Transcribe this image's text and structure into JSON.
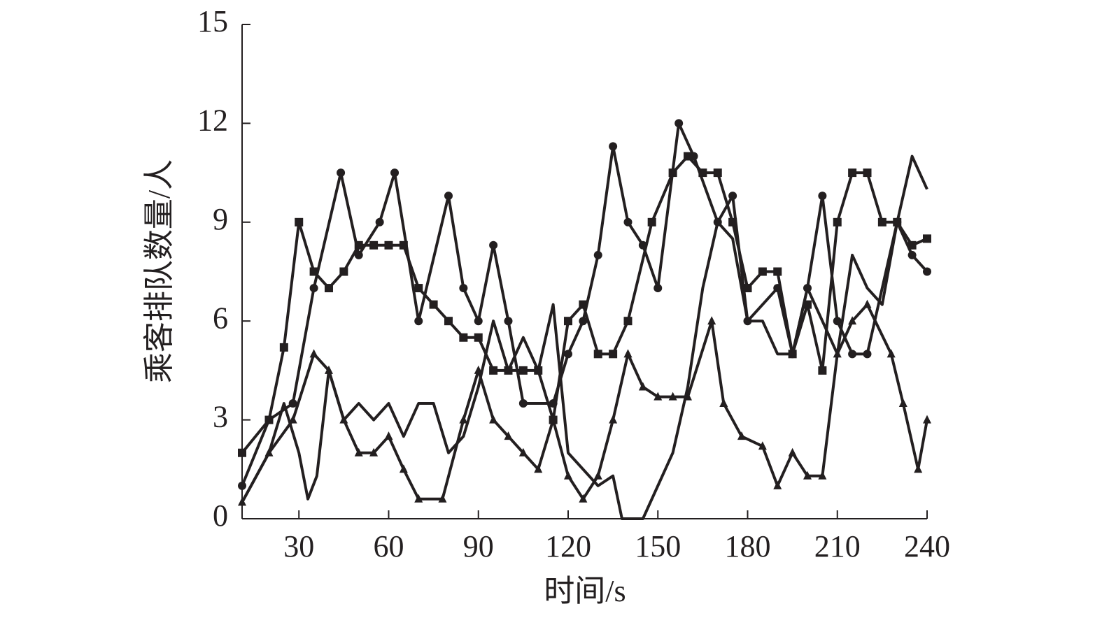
{
  "chart_data": {
    "type": "line",
    "x_label": "时间/s",
    "y_label": "乘客排队数量/人",
    "xlim": [
      11,
      240
    ],
    "xticks": [
      30,
      60,
      90,
      120,
      150,
      180,
      210,
      240
    ],
    "ylim": [
      0,
      15
    ],
    "yticks": [
      0,
      3,
      6,
      9,
      12,
      15
    ],
    "series": [
      {
        "color": "#231f20",
        "marker": "square",
        "x": [
          11,
          20,
          25,
          30,
          35,
          40,
          45,
          50,
          55,
          60,
          65,
          70,
          75,
          80,
          85,
          90,
          95,
          100,
          105,
          110,
          115,
          120,
          125,
          130,
          135,
          140,
          148,
          155,
          160,
          165,
          170,
          175,
          180,
          185,
          190,
          195,
          200,
          205,
          210,
          215,
          220,
          225,
          230,
          235,
          240
        ],
        "values": [
          2,
          3,
          5.2,
          9,
          7.5,
          7,
          7.5,
          8.3,
          8.3,
          8.3,
          8.3,
          7,
          6.5,
          6,
          5.5,
          5.5,
          4.5,
          4.5,
          4.5,
          4.5,
          3,
          6,
          6.5,
          5,
          5,
          6,
          9,
          10.5,
          11,
          10.5,
          10.5,
          9,
          7,
          7.5,
          7.5,
          5,
          6.5,
          4.5,
          9,
          10.5,
          10.5,
          9,
          9,
          8.3,
          8.5
        ]
      },
      {
        "color": "#231f20",
        "marker": "circle",
        "x": [
          11,
          20,
          28,
          35,
          44,
          50,
          57,
          62,
          70,
          80,
          85,
          90,
          95,
          100,
          105,
          115,
          120,
          125,
          130,
          135,
          140,
          145,
          150,
          157,
          162,
          170,
          175,
          180,
          190,
          195,
          200,
          205,
          210,
          215,
          220,
          230,
          235,
          240
        ],
        "values": [
          1,
          3,
          3.5,
          7,
          10.5,
          8,
          9,
          10.5,
          6,
          9.8,
          7,
          6,
          8.3,
          6,
          3.5,
          3.5,
          5,
          6,
          8,
          11.3,
          9,
          8.3,
          7,
          12,
          11,
          9,
          9.8,
          6,
          7,
          5,
          7,
          9.8,
          6,
          5,
          5,
          9,
          8,
          7.5
        ]
      },
      {
        "color": "#231f20",
        "marker": "triangle",
        "x": [
          11,
          20,
          28,
          35,
          40,
          45,
          50,
          55,
          60,
          65,
          70,
          78,
          85,
          90,
          95,
          100,
          105,
          110,
          115,
          120,
          125,
          130,
          135,
          140,
          145,
          150,
          155,
          160,
          168,
          172,
          178,
          185,
          190,
          195,
          200,
          205,
          210,
          215,
          220,
          228,
          232,
          237,
          240
        ],
        "values": [
          0.5,
          2,
          3,
          5,
          4.5,
          3,
          2,
          2,
          2.5,
          1.5,
          0.6,
          0.6,
          3,
          4.5,
          3,
          2.5,
          2,
          1.5,
          3,
          1.3,
          0.6,
          1.3,
          3,
          5,
          4,
          3.7,
          3.7,
          3.7,
          6,
          3.5,
          2.5,
          2.2,
          1,
          2,
          1.3,
          1.3,
          5,
          6,
          6.5,
          5,
          3.5,
          1.5,
          3
        ]
      },
      {
        "color": "#231f20",
        "marker": "none",
        "x": [
          11,
          20,
          25,
          30,
          33,
          36,
          40,
          45,
          50,
          55,
          60,
          65,
          70,
          75,
          80,
          85,
          90,
          95,
          100,
          105,
          110,
          115,
          120,
          125,
          130,
          135,
          138,
          140,
          145,
          150,
          155,
          160,
          165,
          170,
          175,
          180,
          185,
          190,
          195,
          200,
          205,
          210,
          215,
          220,
          225,
          230,
          235,
          240
        ],
        "values": [
          0.5,
          2,
          3.5,
          2,
          0.6,
          1.3,
          4.5,
          3,
          3.5,
          3,
          3.5,
          2.5,
          3.5,
          3.5,
          2,
          2.5,
          4,
          6,
          4.5,
          5.5,
          4.5,
          6.5,
          2,
          1.5,
          1,
          1.3,
          0,
          0,
          0,
          1,
          2,
          4,
          7,
          9,
          8.5,
          6,
          6,
          5,
          5,
          7,
          6,
          5,
          8,
          7,
          6.5,
          9,
          11,
          10
        ]
      }
    ]
  }
}
